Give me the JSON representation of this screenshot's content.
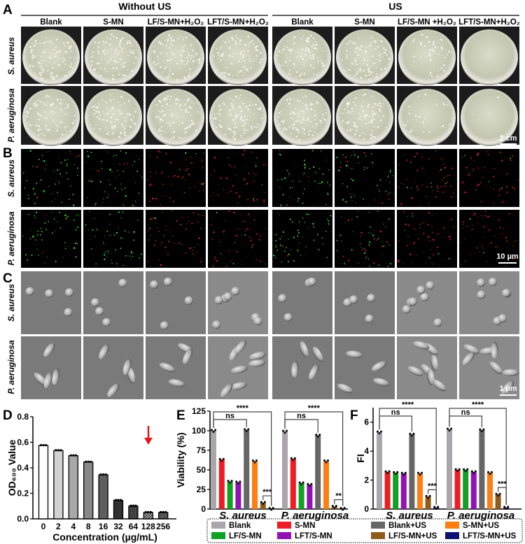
{
  "panel_labels": {
    "A": "A",
    "B": "B",
    "C": "C",
    "D": "D",
    "E": "E",
    "F": "F"
  },
  "headers": {
    "without_us": "Without US",
    "us": "US"
  },
  "columns": [
    "Blank",
    "S-MN",
    "LF/S-MN+H₂O₂",
    "LFT/S-MN+H₂O₂",
    "Blank",
    "S-MN",
    "LF/S-MN +H₂O₂",
    "LFT/S-MN+H₂O₂"
  ],
  "row_labels": [
    "S. aureus",
    "P. aeruginosa"
  ],
  "scale_bars": {
    "A": "2 cm",
    "B": "10 µm",
    "C": "1 µm"
  },
  "colors": {
    "Blank": "#a9a7ab",
    "S-MN": "#ee1c24",
    "LF/S-MN": "#12a025",
    "LFT/S-MN": "#9212b4",
    "Blank+US": "#666666",
    "S-MN+US": "#ff7e12",
    "LF/S-MN+US": "#8e5d1c",
    "LFT/S-MN+US": "#0f1270",
    "arrow": "#e8141c"
  },
  "chart_data": [
    {
      "panel": "D",
      "type": "bar",
      "categories": [
        "0",
        "2",
        "4",
        "8",
        "16",
        "32",
        "64",
        "128",
        "256"
      ],
      "values": [
        0.575,
        0.535,
        0.495,
        0.445,
        0.345,
        0.145,
        0.1,
        0.05,
        0.05
      ],
      "xlabel": "Concentration (µg/mL)",
      "ylabel": "OD₆₀₀ Value",
      "ylim": [
        0,
        0.8
      ],
      "yticks": [
        "0.0",
        "0.2",
        "0.4",
        "0.6",
        "0.8"
      ],
      "annotation": {
        "type": "red-arrow",
        "category": "128"
      }
    },
    {
      "panel": "E",
      "type": "bar",
      "categories": [
        "S. aureus",
        "P. aeruginosa"
      ],
      "ylabel": "Viability (%)",
      "ylim": [
        0,
        125
      ],
      "yticks": [
        "0",
        "25",
        "50",
        "75",
        "100",
        "125"
      ],
      "series": [
        {
          "name": "Blank",
          "values": [
            100,
            99
          ]
        },
        {
          "name": "S-MN",
          "values": [
            63,
            64
          ]
        },
        {
          "name": "LF/S-MN",
          "values": [
            35,
            33
          ]
        },
        {
          "name": "LFT/S-MN",
          "values": [
            34,
            31
          ]
        },
        {
          "name": "Blank+US",
          "values": [
            101,
            94
          ]
        },
        {
          "name": "S-MN+US",
          "values": [
            61,
            61
          ]
        },
        {
          "name": "LF/S-MN+US",
          "values": [
            8,
            3
          ]
        },
        {
          "name": "LFT/S-MN+US",
          "values": [
            0.5,
            0.5
          ]
        }
      ],
      "significance": [
        [
          "****",
          "****"
        ],
        [
          "ns",
          "ns"
        ],
        [
          "***",
          "**"
        ]
      ]
    },
    {
      "panel": "F",
      "type": "bar",
      "categories": [
        "S. aureus",
        "P. aeruginosa"
      ],
      "ylabel": "FI",
      "ylim": [
        0,
        7
      ],
      "yticks": [
        "0",
        "2",
        "4",
        "6"
      ],
      "series": [
        {
          "name": "Blank",
          "values": [
            5.3,
            5.5
          ]
        },
        {
          "name": "S-MN",
          "values": [
            2.55,
            2.7
          ]
        },
        {
          "name": "LF/S-MN",
          "values": [
            2.5,
            2.7
          ]
        },
        {
          "name": "LFT/S-MN",
          "values": [
            2.45,
            2.55
          ]
        },
        {
          "name": "Blank+US",
          "values": [
            5.15,
            5.45
          ]
        },
        {
          "name": "S-MN+US",
          "values": [
            2.45,
            2.5
          ]
        },
        {
          "name": "LF/S-MN+US",
          "values": [
            0.85,
            1.0
          ]
        },
        {
          "name": "LFT/S-MN+US",
          "values": [
            0.1,
            0.1
          ]
        }
      ],
      "significance": [
        [
          "****",
          "****"
        ],
        [
          "ns",
          "ns"
        ],
        [
          "***",
          "***"
        ]
      ]
    }
  ],
  "legend": [
    "Blank",
    "S-MN",
    "Blank+US",
    "S-MN+US",
    "LF/S-MN",
    "LFT/S-MN",
    "LF/S-MN+US",
    "LFT/S-MN+US"
  ]
}
